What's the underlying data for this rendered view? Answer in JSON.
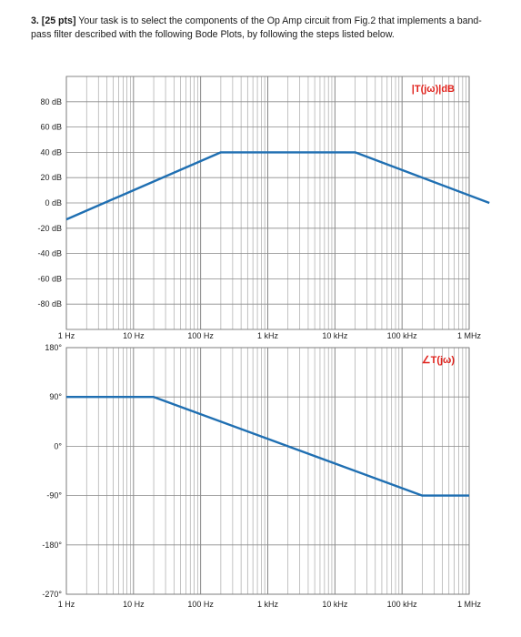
{
  "question": {
    "number": "3.",
    "points": "[25 pts]",
    "text": "Your task is to select the components of the Op Amp circuit from Fig.2 that implements a band-pass filter described with the following Bode Plots, by following the steps listed below."
  },
  "colors": {
    "curve": "#1f6fb2",
    "title": "#e0211b",
    "grid": "#9a9a9a"
  },
  "chart_data": [
    {
      "type": "line",
      "title": "|T(jω)|dB",
      "x_scale": "log",
      "xlim": [
        1,
        1000000
      ],
      "ylim": [
        -100,
        100
      ],
      "x_tick_labels": [
        "1 Hz",
        "10 Hz",
        "100 Hz",
        "1 kHz",
        "10 kHz",
        "100 kHz",
        "1 MHz"
      ],
      "y_ticks": [
        80,
        60,
        40,
        20,
        0,
        -20,
        -40,
        -60,
        -80
      ],
      "y_tick_labels": [
        "80 dB",
        "60 dB",
        "40 dB",
        "20 dB",
        "0 dB",
        "-20 dB",
        "-40 dB",
        "-60 dB",
        "-80 dB"
      ],
      "grid": true,
      "series": [
        {
          "x": [
            1,
            200,
            20000,
            2000000
          ],
          "y": [
            -13,
            40,
            40,
            0
          ]
        }
      ]
    },
    {
      "type": "line",
      "title": "∠T(jω)",
      "x_scale": "log",
      "xlim": [
        1,
        1000000
      ],
      "ylim": [
        -270,
        180
      ],
      "x_tick_labels": [
        "1 Hz",
        "10 Hz",
        "100 Hz",
        "1 kHz",
        "10 kHz",
        "100 kHz",
        "1 MHz"
      ],
      "y_ticks": [
        180,
        90,
        0,
        -90,
        -180,
        -270
      ],
      "y_tick_labels": [
        "180°",
        "90°",
        "0°",
        "-90°",
        "-180°",
        "-270°"
      ],
      "grid": true,
      "series": [
        {
          "x": [
            1,
            20,
            200000,
            1000000
          ],
          "y": [
            90,
            90,
            -90,
            -90
          ]
        }
      ]
    }
  ]
}
